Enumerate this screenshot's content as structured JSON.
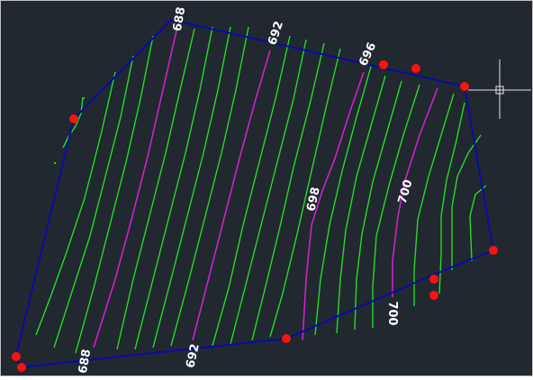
{
  "canvas": {
    "background": "#212830",
    "boundary_color": "#0a0aa8",
    "minor_contour_color": "#22dd22",
    "major_contour_color": "#cc22cc",
    "vertex_marker_color": "#ff1111",
    "crosshair_color": "#e6e6e6"
  },
  "contour_labels": {
    "l688_top": "688",
    "l692_top": "692",
    "l696_top": "696",
    "l698_mid": "698",
    "l700_mid": "700",
    "l700_bottom": "700",
    "l688_bottom": "688",
    "l692_bottom": "692"
  },
  "icons": {
    "cursor": "crosshair-cursor-icon",
    "vertex": "vertex-grip-marker"
  }
}
